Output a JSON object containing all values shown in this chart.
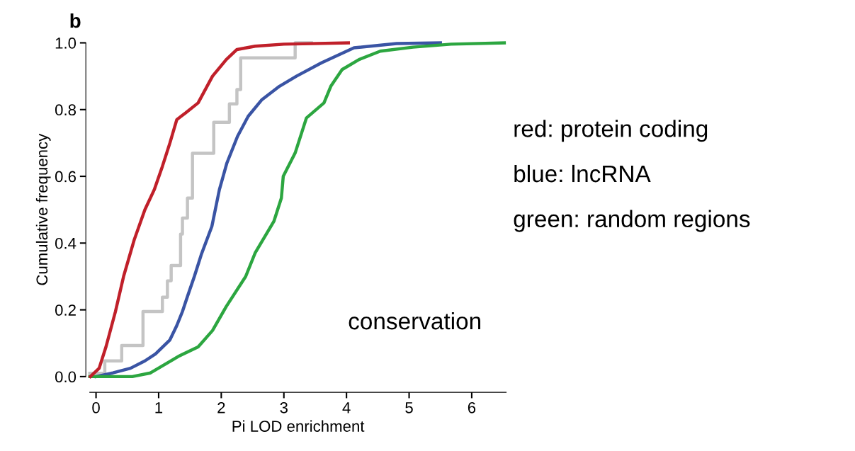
{
  "chart_data": {
    "type": "line",
    "title": "b",
    "xlabel": "Pi LOD enrichment",
    "ylabel": "Cumulative frequency",
    "xlim": [
      -0.1,
      6.55
    ],
    "ylim": [
      0,
      1.0
    ],
    "xticks": [
      0,
      1,
      2,
      3,
      4,
      5,
      6
    ],
    "yticks": [
      {
        "value": 0,
        "label": "0.0"
      },
      0.2,
      0.4,
      0.6,
      0.8,
      {
        "value": 1,
        "label": "1.0"
      }
    ],
    "grid": false,
    "marker": "none",
    "line_style": "solid",
    "series": [
      {
        "type": "step",
        "color": "#c4c4c4",
        "x": [
          -0.1,
          0.14,
          0.41,
          0.75,
          1.06,
          1.14,
          1.2,
          1.35,
          1.38,
          1.46,
          1.54,
          1.88,
          2.13,
          2.25,
          2.31,
          3.18,
          3.44
        ],
        "values": [
          0.01,
          0.047,
          0.093,
          0.195,
          0.238,
          0.287,
          0.333,
          0.427,
          0.475,
          0.535,
          0.669,
          0.762,
          0.817,
          0.86,
          0.955,
          1.0,
          1.0
        ]
      },
      {
        "color": "#3a54a4",
        "x": [
          0,
          0.27,
          0.55,
          0.78,
          0.95,
          1.18,
          1.29,
          1.38,
          1.46,
          1.57,
          1.68,
          1.85,
          1.97,
          2.09,
          2.26,
          2.43,
          2.65,
          2.93,
          3.2,
          3.6,
          4.12,
          4.8,
          5.5
        ],
        "values": [
          0,
          0.011,
          0.025,
          0.047,
          0.068,
          0.11,
          0.153,
          0.195,
          0.24,
          0.3,
          0.365,
          0.45,
          0.56,
          0.64,
          0.72,
          0.78,
          0.83,
          0.87,
          0.9,
          0.94,
          0.985,
          0.998,
          1.0
        ]
      },
      {
        "color": "#2ca640",
        "x": [
          -0.1,
          0.58,
          0.87,
          1.33,
          1.63,
          1.86,
          2.08,
          2.39,
          2.54,
          2.84,
          2.96,
          2.99,
          3.18,
          3.36,
          3.64,
          3.75,
          3.93,
          4.2,
          4.54,
          5.06,
          5.67,
          6.52
        ],
        "values": [
          0,
          0,
          0.011,
          0.062,
          0.089,
          0.138,
          0.21,
          0.3,
          0.37,
          0.465,
          0.535,
          0.6,
          0.67,
          0.775,
          0.82,
          0.87,
          0.92,
          0.95,
          0.975,
          0.987,
          0.996,
          1.0
        ]
      },
      {
        "color": "#c0202a",
        "x": [
          -0.09,
          0.05,
          0.16,
          0.31,
          0.44,
          0.61,
          0.78,
          0.93,
          1.06,
          1.18,
          1.29,
          1.43,
          1.63,
          1.86,
          2.08,
          2.25,
          2.54,
          3.0,
          4.03
        ],
        "values": [
          0,
          0.025,
          0.09,
          0.195,
          0.3,
          0.41,
          0.5,
          0.56,
          0.63,
          0.7,
          0.77,
          0.79,
          0.82,
          0.9,
          0.95,
          0.98,
          0.99,
          0.996,
          1.0
        ]
      }
    ],
    "annotations": [
      "red: protein coding",
      "blue: lncRNA",
      "green: random regions",
      "conservation"
    ]
  }
}
